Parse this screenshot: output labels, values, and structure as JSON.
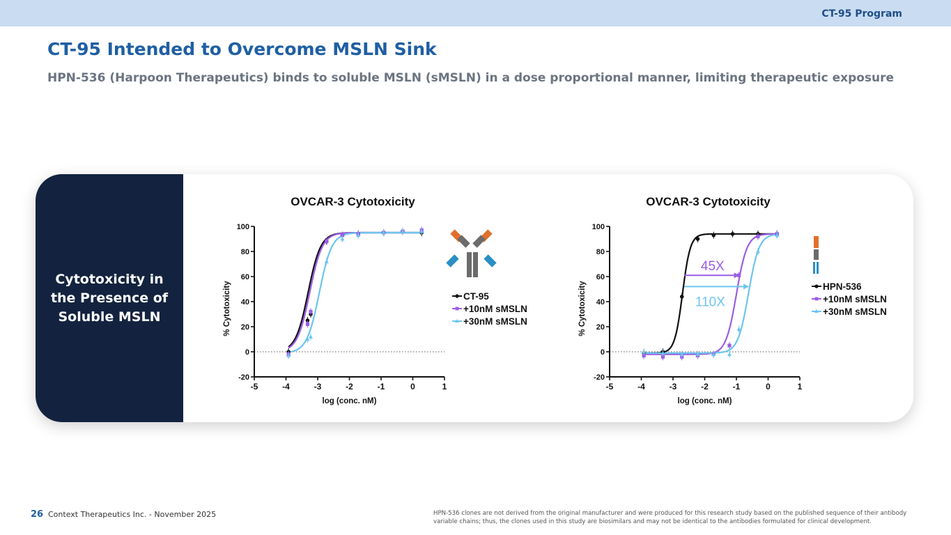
{
  "header": {
    "program": "CT-95 Program"
  },
  "title": "CT-95 Intended to Overcome MSLN Sink",
  "subtitle": "HPN-536 (Harpoon Therapeutics) binds to soluble MSLN (sMSLN) in a dose proportional manner, limiting therapeutic exposure",
  "card": {
    "side_label": "Cytotoxicity in the Presence of Soluble MSLN"
  },
  "colors": {
    "black": "#111111",
    "purple": "#9b5de5",
    "blue": "#6cc5ef",
    "navy": "#13233f",
    "orange": "#e0702c",
    "teal": "#2a8fc4",
    "gray": "#6b6b6b"
  },
  "chart_data": [
    {
      "type": "line",
      "title": "OVCAR-3 Cytotoxicity",
      "xlabel": "log (conc. nM)",
      "ylabel": "% Cytotoxicity",
      "xlim": [
        -5,
        1
      ],
      "ylim": [
        -20,
        100
      ],
      "xticks": [
        "-5",
        "-4",
        "-3",
        "-2",
        "-1",
        "0",
        "1"
      ],
      "yticks": [
        "-20",
        "0",
        "20",
        "40",
        "60",
        "80",
        "100"
      ],
      "reference_line_y": 0,
      "legend_position": "right",
      "icon": "antibody-icon",
      "series": [
        {
          "name": "CT-95",
          "color": "#111111",
          "marker": "circle",
          "ec50_log": -3.3,
          "hill": 2.2,
          "bottom": 0,
          "top": 95,
          "x": [
            -3.92,
            -3.32,
            -3.22,
            -2.72,
            -2.22,
            -1.72,
            -0.92,
            -0.32,
            0.28
          ],
          "y": [
            0,
            25,
            30,
            88,
            93,
            94,
            95,
            96,
            95
          ]
        },
        {
          "name": "+10nM sMSLN",
          "color": "#9b5de5",
          "marker": "square",
          "ec50_log": -3.25,
          "hill": 2.2,
          "bottom": 0,
          "top": 95,
          "x": [
            -3.92,
            -3.32,
            -3.22,
            -2.72,
            -2.22,
            -1.72,
            -0.92,
            -0.32,
            0.28
          ],
          "y": [
            -2,
            22,
            32,
            88,
            93,
            94,
            95,
            96,
            97
          ]
        },
        {
          "name": "+30nM sMSLN",
          "color": "#6cc5ef",
          "marker": "triangle",
          "ec50_log": -2.95,
          "hill": 2.2,
          "bottom": -1,
          "top": 95,
          "x": [
            -3.92,
            -3.32,
            -3.22,
            -2.72,
            -2.22,
            -1.72,
            -0.92,
            -0.32,
            0.28
          ],
          "y": [
            -3,
            10,
            12,
            72,
            90,
            93,
            95,
            96,
            96
          ]
        }
      ]
    },
    {
      "type": "line",
      "title": "OVCAR-3 Cytotoxicity",
      "xlabel": "log (conc. nM)",
      "ylabel": "% Cytotoxicity",
      "xlim": [
        -5,
        1
      ],
      "ylim": [
        -20,
        100
      ],
      "xticks": [
        "-5",
        "-4",
        "-3",
        "-2",
        "-1",
        "0",
        "1"
      ],
      "yticks": [
        "-20",
        "0",
        "20",
        "40",
        "60",
        "80",
        "100"
      ],
      "reference_line_y": 0,
      "legend_position": "right",
      "icon": "bispecific-icon",
      "annotations": [
        {
          "text": "45X",
          "color": "#9b5de5",
          "from": -2.65,
          "to": -0.9,
          "y": 61
        },
        {
          "text": "110X",
          "color": "#6cc5ef",
          "from": -2.65,
          "to": -0.6,
          "y": 52
        }
      ],
      "series": [
        {
          "name": "HPN-536",
          "color": "#111111",
          "marker": "circle",
          "ec50_log": -2.7,
          "hill": 3.5,
          "bottom": -1,
          "top": 94,
          "x": [
            -3.92,
            -3.32,
            -2.72,
            -2.22,
            -1.72,
            -1.12,
            -0.32,
            0.28
          ],
          "y": [
            -1,
            0,
            44,
            90,
            93,
            94,
            94,
            94
          ]
        },
        {
          "name": "+10nM sMSLN",
          "color": "#9b5de5",
          "marker": "square",
          "ec50_log": -1.0,
          "hill": 2.6,
          "bottom": -2,
          "top": 94,
          "x": [
            -3.92,
            -3.32,
            -2.72,
            -2.22,
            -1.72,
            -1.22,
            -0.92,
            -0.32,
            0.28
          ],
          "y": [
            -3,
            -4,
            -4,
            -3,
            -2,
            5,
            61,
            92,
            94
          ]
        },
        {
          "name": "+30nM sMSLN",
          "color": "#6cc5ef",
          "marker": "triangle",
          "ec50_log": -0.62,
          "hill": 2.6,
          "bottom": -1,
          "top": 94,
          "x": [
            -3.92,
            -3.32,
            -2.72,
            -2.22,
            -1.72,
            -1.22,
            -0.92,
            -0.32,
            0.28
          ],
          "y": [
            0,
            -1,
            -2,
            -2,
            -2,
            -2,
            18,
            80,
            93
          ]
        }
      ]
    }
  ],
  "footer": {
    "page_number": "26",
    "organization": "Context Therapeutics Inc. - November 2025",
    "footnote": "HPN-536 clones are not derived from the original manufacturer and were produced for this research study based on the published sequence of their antibody variable chains; thus, the clones used in this study are biosimilars and may not be identical to the antibodies formulated for clinical development."
  }
}
